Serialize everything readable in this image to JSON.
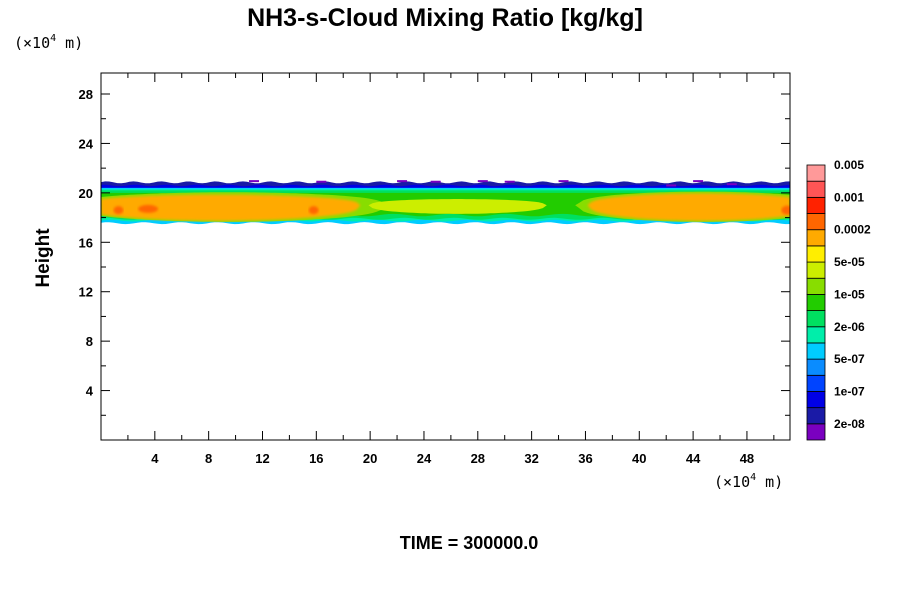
{
  "chart_data": {
    "type": "heatmap",
    "title": "NH3-s-Cloud Mixing Ratio [kg/kg]",
    "ylabel": "Height",
    "x_unit": {
      "prefix": "(×10",
      "exp": "4",
      "suffix": " m)"
    },
    "y_unit": {
      "prefix": "(×10",
      "exp": "4",
      "suffix": " m)"
    },
    "xlim": [
      0,
      51.2
    ],
    "ylim": [
      0,
      29.7
    ],
    "x_ticks": [
      4,
      8,
      12,
      16,
      20,
      24,
      28,
      32,
      36,
      40,
      44,
      48
    ],
    "y_ticks": [
      4,
      8,
      12,
      16,
      20,
      24,
      28
    ],
    "colorbar": {
      "colors": [
        "#7a00c0",
        "#1a1aa6",
        "#0000e6",
        "#0044ff",
        "#0a8cff",
        "#00ccff",
        "#00eeaa",
        "#00e060",
        "#22cc00",
        "#88dd00",
        "#ccee00",
        "#ffee00",
        "#ffaa00",
        "#ff6600",
        "#ff2200",
        "#ff5555",
        "#ff9999"
      ],
      "labels": [
        "2e-08",
        "1e-07",
        "5e-07",
        "2e-06",
        "1e-05",
        "5e-05",
        "0.0002",
        "0.001",
        "0.005"
      ]
    },
    "field_summary": {
      "cloud_layer_height_range": [
        17.5,
        20.8
      ],
      "regions": [
        {
          "x": [
            0,
            19
          ],
          "y": [
            17.6,
            19.8
          ],
          "level": "0.0002"
        },
        {
          "x": [
            19,
            36
          ],
          "y": [
            18.0,
            20.2
          ],
          "level": "1e-05"
        },
        {
          "x": [
            36,
            51.2
          ],
          "y": [
            17.6,
            20.0
          ],
          "level": "0.0002"
        }
      ]
    }
  },
  "footer": {
    "time_label": "TIME = 300000.0"
  }
}
